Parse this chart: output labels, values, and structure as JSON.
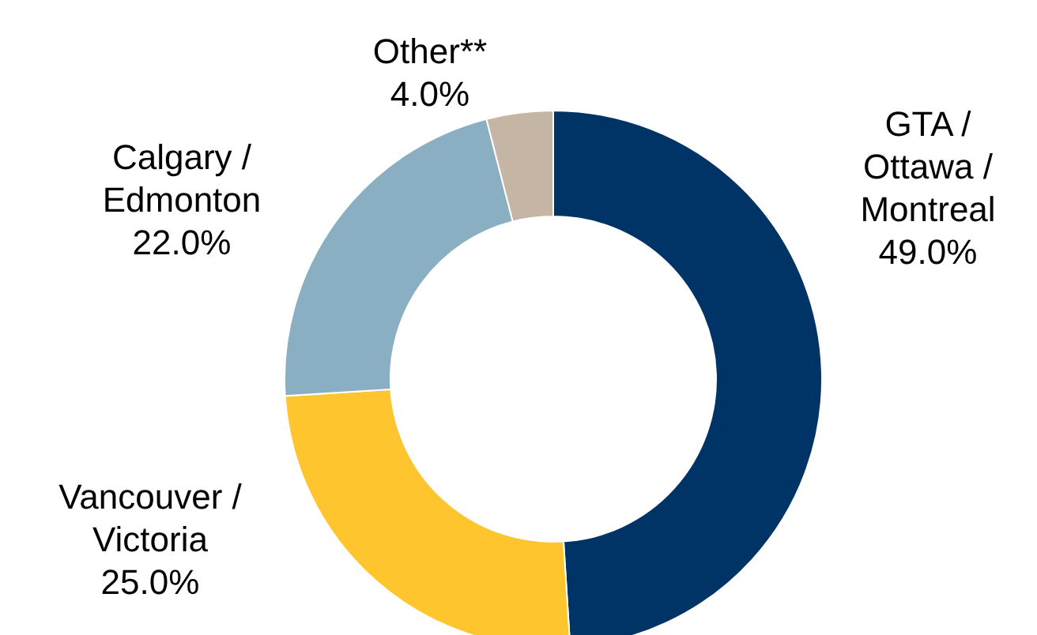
{
  "chart_data": {
    "type": "donut",
    "categories": [
      "GTA / Ottawa / Montreal",
      "Vancouver / Victoria",
      "Calgary / Edmonton",
      "Other**"
    ],
    "values": [
      49.0,
      25.0,
      22.0,
      4.0
    ],
    "colors": [
      "#003366",
      "#ffc52f",
      "#8aafc2",
      "#c4b5a5"
    ],
    "value_labels": [
      "49.0%",
      "25.0%",
      "22.0%",
      "4.0%"
    ],
    "legend": false
  }
}
